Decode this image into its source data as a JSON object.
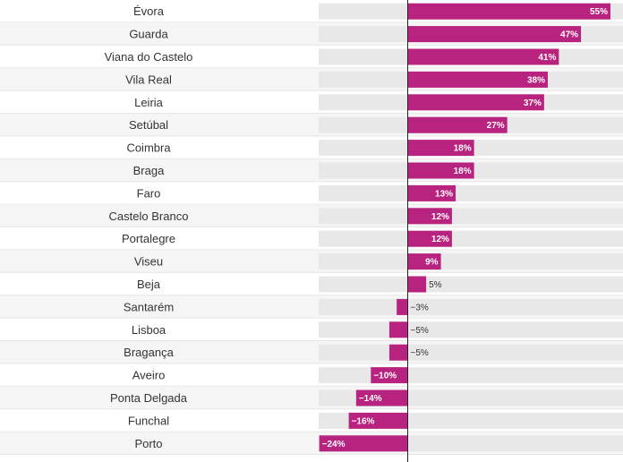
{
  "chart_data": {
    "type": "bar",
    "orientation": "horizontal",
    "categories": [
      "Évora",
      "Guarda",
      "Viana do Castelo",
      "Vila Real",
      "Leiria",
      "Setúbal",
      "Coimbra",
      "Braga",
      "Faro",
      "Castelo Branco",
      "Portalegre",
      "Viseu",
      "Beja",
      "Santarém",
      "Lisboa",
      "Bragança",
      "Aveiro",
      "Ponta Delgada",
      "Funchal",
      "Porto"
    ],
    "values": [
      55,
      47,
      41,
      38,
      37,
      27,
      18,
      18,
      13,
      12,
      12,
      9,
      5,
      -3,
      -5,
      -5,
      -10,
      -14,
      -16,
      -24
    ],
    "value_labels": [
      "55%",
      "47%",
      "41%",
      "38%",
      "37%",
      "27%",
      "18%",
      "18%",
      "13%",
      "12%",
      "12%",
      "9%",
      "5%",
      "−3%",
      "−5%",
      "−5%",
      "−10%",
      "−14%",
      "−16%",
      "−24%"
    ],
    "xlim": [
      -24,
      55
    ],
    "bar_color": "#b8237f",
    "track_color": "#e8e8e8",
    "stripe_color": "#f5f5f5",
    "axis_color": "#222222"
  }
}
